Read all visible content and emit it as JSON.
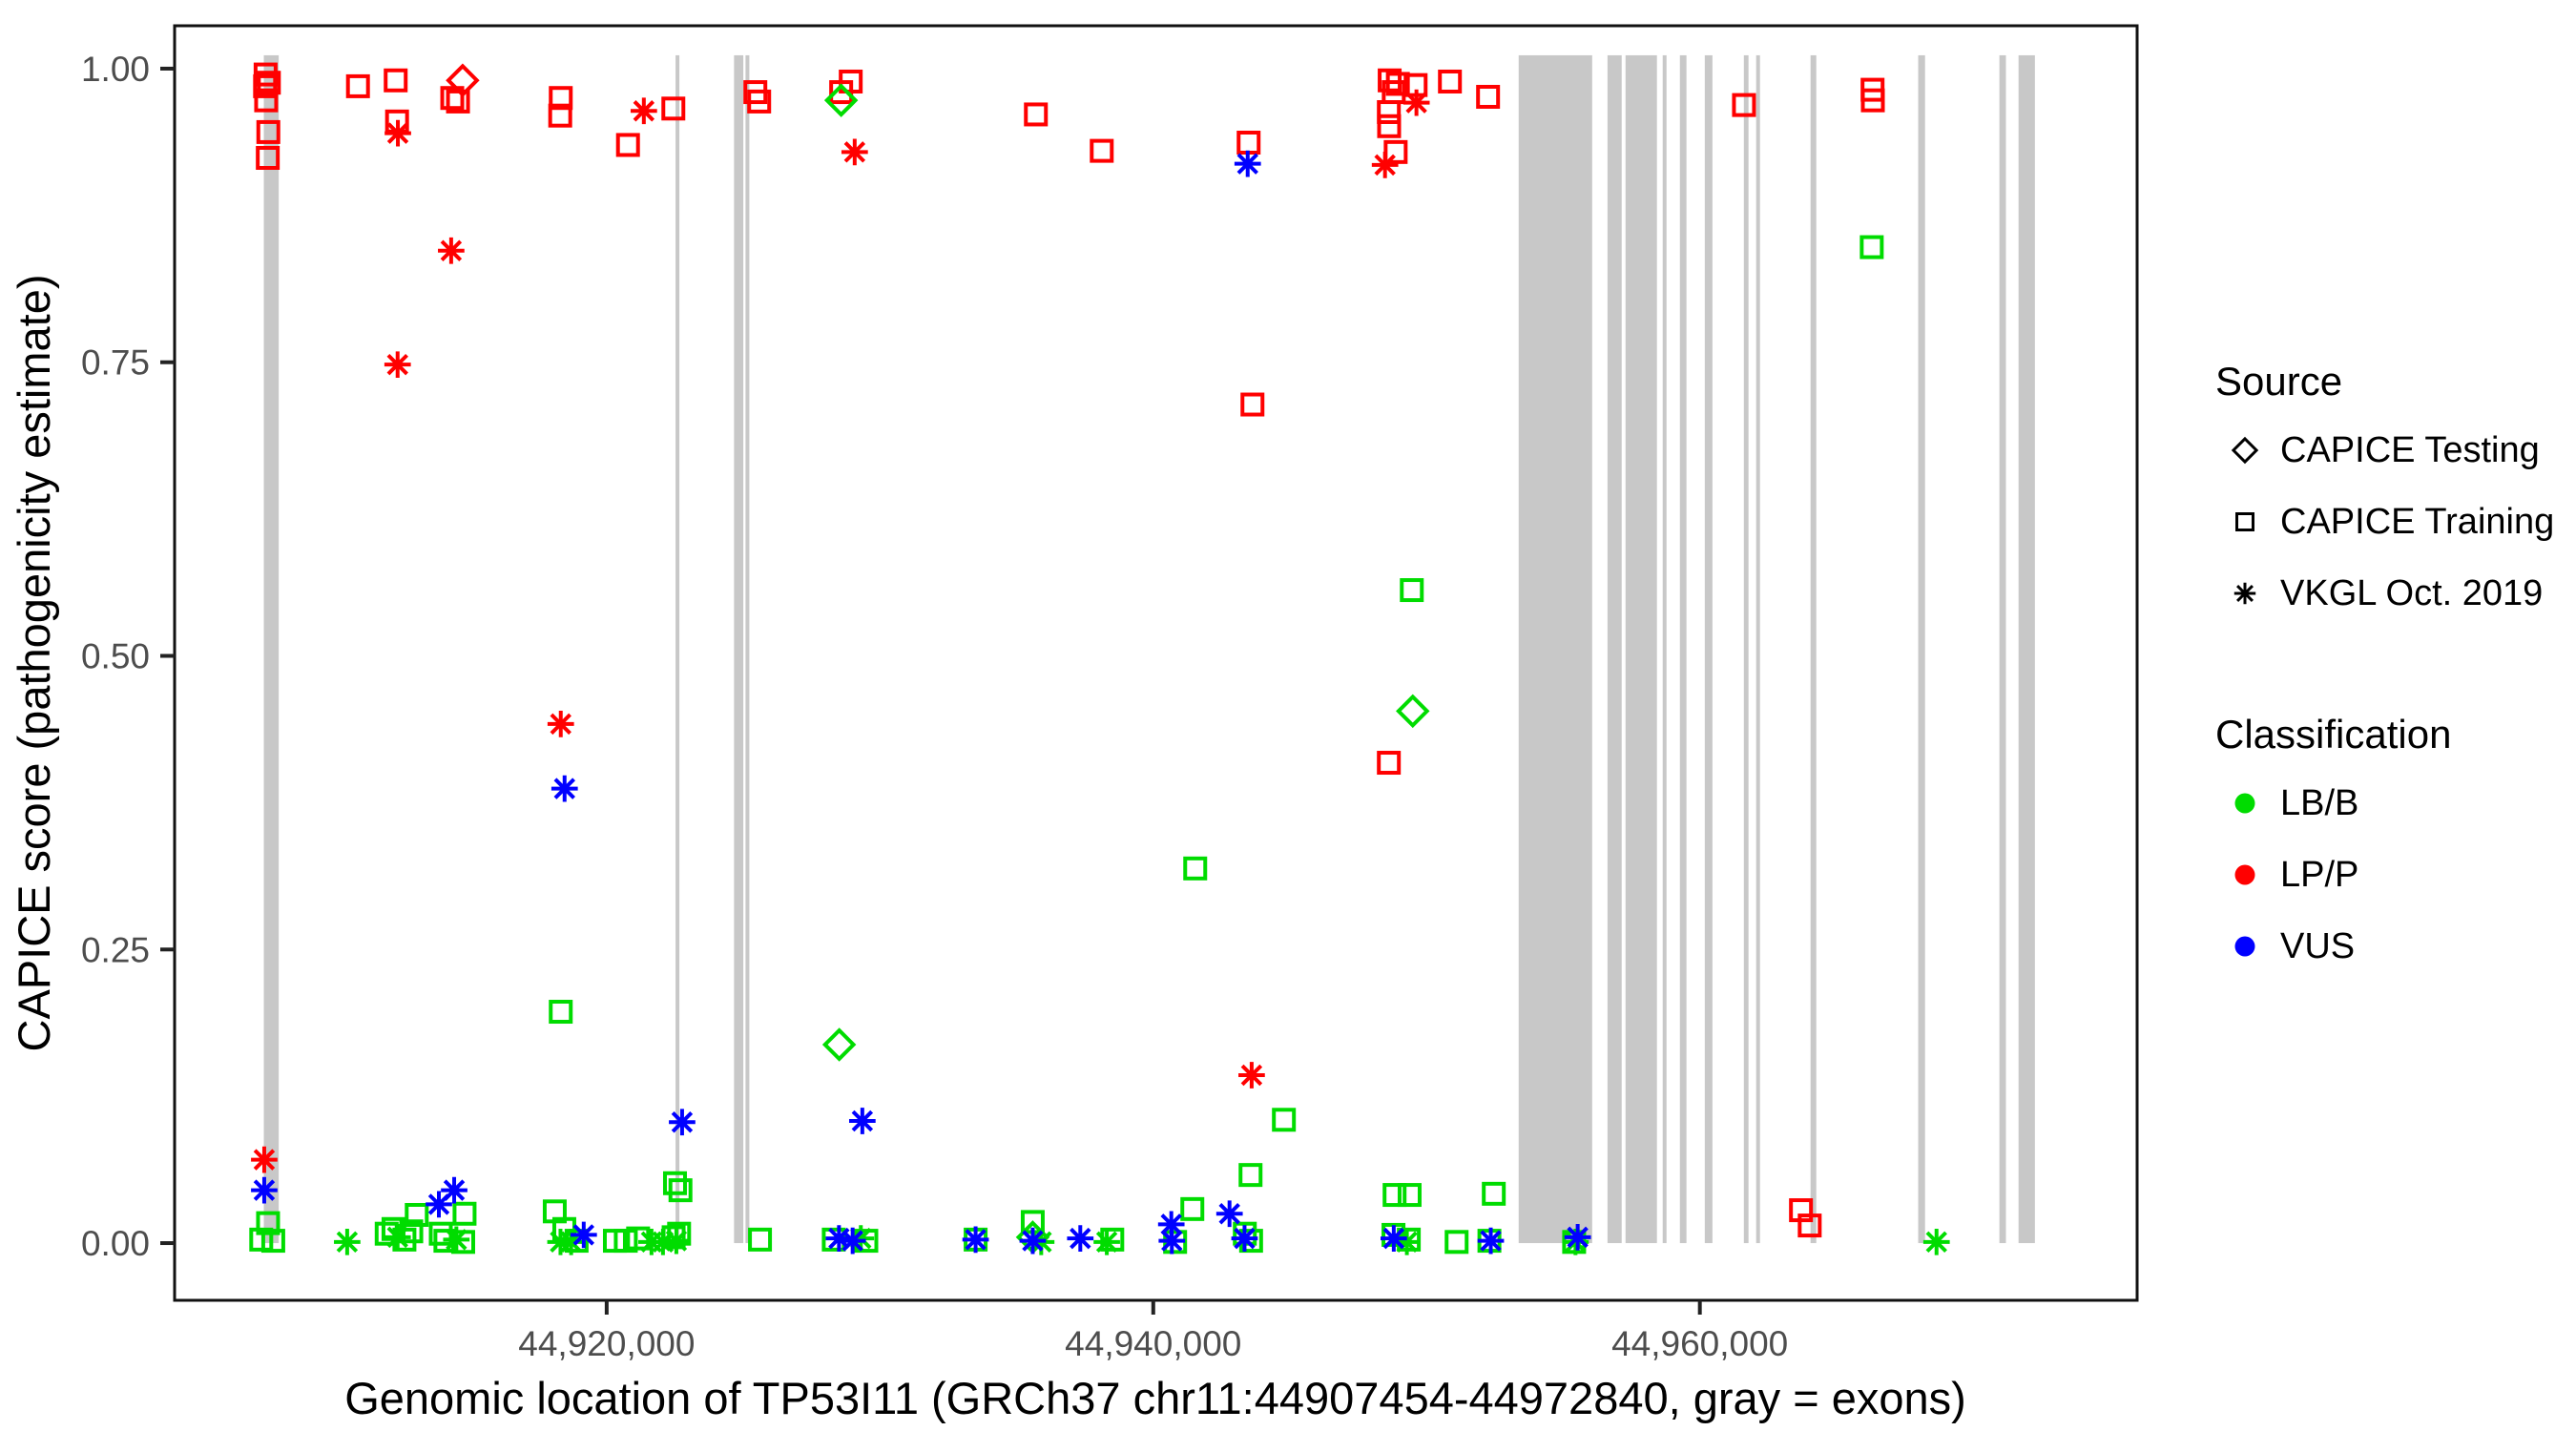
{
  "chart_data": {
    "type": "scatter",
    "title": "",
    "x_axis": {
      "label": "Genomic location of TP53I11 (GRCh37 chr11:44907454-44972840, gray = exons)",
      "range": [
        44904190,
        44976000
      ],
      "ticks": [
        {
          "value": 44920000,
          "label": "44,920,000"
        },
        {
          "value": 44940000,
          "label": "44,940,000"
        },
        {
          "value": 44960000,
          "label": "44,960,000"
        }
      ]
    },
    "y_axis": {
      "label": "CAPICE score (pathogenicity estimate)",
      "range": [
        -0.0487,
        1.0365
      ],
      "ticks": [
        {
          "value": 0.0,
          "label": "0.00"
        },
        {
          "value": 0.25,
          "label": "0.25"
        },
        {
          "value": 0.5,
          "label": "0.50"
        },
        {
          "value": 0.75,
          "label": "0.75"
        },
        {
          "value": 1.0,
          "label": "1.00"
        }
      ]
    },
    "grid": "off",
    "exons_note": "gray vertical bars are exons drawn from score 0 to 1",
    "exons": [
      [
        44907454,
        44908000
      ],
      [
        44922520,
        44922660
      ],
      [
        44924660,
        44925000
      ],
      [
        44925080,
        44925220
      ],
      [
        44953370,
        44956060
      ],
      [
        44956620,
        44957140
      ],
      [
        44957280,
        44958430
      ],
      [
        44958640,
        44958780
      ],
      [
        44959270,
        44959510
      ],
      [
        44960180,
        44960460
      ],
      [
        44961610,
        44961780
      ],
      [
        44962060,
        44962200
      ],
      [
        44964050,
        44964260
      ],
      [
        44967990,
        44968240
      ],
      [
        44970960,
        44971200
      ],
      [
        44971660,
        44972260
      ]
    ],
    "series": [
      {
        "name": "CAPICE Training / LP/P",
        "source": "CAPICE Training",
        "classification": "LP/P",
        "shape": "square",
        "color": "#FF0000",
        "points": [
          [
            44907520,
            0.995
          ],
          [
            44907640,
            0.988
          ],
          [
            44907500,
            0.985
          ],
          [
            44907540,
            0.973
          ],
          [
            44907620,
            0.946
          ],
          [
            44907600,
            0.924
          ],
          [
            44910900,
            0.985
          ],
          [
            44912280,
            0.99
          ],
          [
            44912330,
            0.955
          ],
          [
            44914350,
            0.975
          ],
          [
            44914560,
            0.972
          ],
          [
            44918320,
            0.975
          ],
          [
            44918300,
            0.96
          ],
          [
            44920780,
            0.935
          ],
          [
            44922440,
            0.966
          ],
          [
            44925440,
            0.98
          ],
          [
            44925580,
            0.972
          ],
          [
            44928930,
            0.989
          ],
          [
            44928580,
            0.98
          ],
          [
            44935705,
            0.961
          ],
          [
            44938115,
            0.93
          ],
          [
            44943490,
            0.937
          ],
          [
            44943630,
            0.714
          ],
          [
            44948650,
            0.99
          ],
          [
            44948950,
            0.987
          ],
          [
            44948800,
            0.98
          ],
          [
            44949600,
            0.986
          ],
          [
            44950855,
            0.989
          ],
          [
            44948620,
            0.963
          ],
          [
            44948630,
            0.951
          ],
          [
            44948870,
            0.929
          ],
          [
            44952250,
            0.976
          ],
          [
            44948620,
            0.409
          ],
          [
            44961615,
            0.969
          ],
          [
            44966320,
            0.982
          ],
          [
            44966330,
            0.973
          ],
          [
            44963700,
            0.028
          ],
          [
            44964020,
            0.015
          ]
        ]
      },
      {
        "name": "CAPICE Training / LB/B",
        "source": "CAPICE Training",
        "classification": "LB/B",
        "shape": "square",
        "color": "#00DC00",
        "points": [
          [
            44907610,
            0.017
          ],
          [
            44907360,
            0.003
          ],
          [
            44907800,
            0.002
          ],
          [
            44911950,
            0.008
          ],
          [
            44912200,
            0.012
          ],
          [
            44912600,
            0.003
          ],
          [
            44912850,
            0.01
          ],
          [
            44913050,
            0.024
          ],
          [
            44913930,
            0.008
          ],
          [
            44914100,
            0.002
          ],
          [
            44914800,
            0.025
          ],
          [
            44914750,
            0.001
          ],
          [
            44918100,
            0.027
          ],
          [
            44918450,
            0.012
          ],
          [
            44918900,
            0.002
          ],
          [
            44918320,
            0.197
          ],
          [
            44920300,
            0.002
          ],
          [
            44920700,
            0.002
          ],
          [
            44921150,
            0.004
          ],
          [
            44922500,
            0.051
          ],
          [
            44922700,
            0.045
          ],
          [
            44922450,
            0.005
          ],
          [
            44922650,
            0.008
          ],
          [
            44925610,
            0.003
          ],
          [
            44928310,
            0.003
          ],
          [
            44929500,
            0.002
          ],
          [
            44933500,
            0.003
          ],
          [
            44935590,
            0.018
          ],
          [
            44938500,
            0.003
          ],
          [
            44940800,
            0.001
          ],
          [
            44941430,
            0.029
          ],
          [
            44941535,
            0.319
          ],
          [
            44943350,
            0.008
          ],
          [
            44943560,
            0.058
          ],
          [
            44943580,
            0.002
          ],
          [
            44944780,
            0.105
          ],
          [
            44948830,
            0.041
          ],
          [
            44949380,
            0.041
          ],
          [
            44948790,
            0.007
          ],
          [
            44949350,
            0.003
          ],
          [
            44949460,
            0.556
          ],
          [
            44951100,
            0.001
          ],
          [
            44952300,
            0.002
          ],
          [
            44952460,
            0.042
          ],
          [
            44955400,
            0.001
          ],
          [
            44966290,
            0.848
          ]
        ]
      },
      {
        "name": "CAPICE Testing / LB/B",
        "source": "CAPICE Testing",
        "classification": "LB/B",
        "shape": "diamond",
        "color": "#00DC00",
        "points": [
          [
            44928580,
            0.973
          ],
          [
            44928510,
            0.169
          ],
          [
            44949495,
            0.453
          ],
          [
            44935590,
            0.005
          ]
        ]
      },
      {
        "name": "CAPICE Testing / LP/P",
        "source": "CAPICE Testing",
        "classification": "LP/P",
        "shape": "diamond",
        "color": "#FF0000",
        "points": [
          [
            44914730,
            0.99
          ]
        ]
      },
      {
        "name": "VKGL Oct. 2019 / LP/P",
        "source": "VKGL Oct. 2019",
        "classification": "LP/P",
        "shape": "asterisk",
        "color": "#FF0000",
        "points": [
          [
            44907470,
            0.071
          ],
          [
            44912360,
            0.945
          ],
          [
            44912350,
            0.748
          ],
          [
            44914310,
            0.845
          ],
          [
            44918320,
            0.442
          ],
          [
            44921360,
            0.964
          ],
          [
            44929075,
            0.929
          ],
          [
            44943600,
            0.143
          ],
          [
            44948480,
            0.918
          ],
          [
            44949630,
            0.971
          ]
        ]
      },
      {
        "name": "VKGL Oct. 2019 / LB/B",
        "source": "VKGL Oct. 2019",
        "classification": "LB/B",
        "shape": "asterisk",
        "color": "#00DC00",
        "points": [
          [
            44910505,
            0.001
          ],
          [
            44912350,
            0.005
          ],
          [
            44914500,
            0.003
          ],
          [
            44918310,
            0.001
          ],
          [
            44918700,
            0.001
          ],
          [
            44921640,
            0.001
          ],
          [
            44922060,
            0.001
          ],
          [
            44922550,
            0.002
          ],
          [
            44929300,
            0.004
          ],
          [
            44935900,
            0.001
          ],
          [
            44938300,
            0.001
          ],
          [
            44949280,
            0.001
          ],
          [
            44955450,
            0.001
          ],
          [
            44968660,
            0.001
          ]
        ]
      },
      {
        "name": "VKGL Oct. 2019 / VUS",
        "source": "VKGL Oct. 2019",
        "classification": "VUS",
        "shape": "asterisk",
        "color": "#0000FF",
        "points": [
          [
            44907470,
            0.045
          ],
          [
            44913860,
            0.033
          ],
          [
            44914420,
            0.045
          ],
          [
            44918460,
            0.387
          ],
          [
            44919160,
            0.007
          ],
          [
            44922760,
            0.103
          ],
          [
            44928500,
            0.004
          ],
          [
            44929000,
            0.002
          ],
          [
            44929355,
            0.104
          ],
          [
            44933500,
            0.003
          ],
          [
            44935590,
            0.002
          ],
          [
            44937330,
            0.004
          ],
          [
            44940660,
            0.016
          ],
          [
            44940680,
            0.002
          ],
          [
            44942790,
            0.025
          ],
          [
            44943340,
            0.004
          ],
          [
            44943455,
            0.919
          ],
          [
            44948800,
            0.004
          ],
          [
            44952350,
            0.002
          ],
          [
            44955530,
            0.005
          ]
        ]
      }
    ],
    "legend": {
      "source": {
        "title": "Source",
        "items": [
          {
            "label": "CAPICE Testing",
            "shape": "diamond"
          },
          {
            "label": "CAPICE Training",
            "shape": "square"
          },
          {
            "label": "VKGL Oct. 2019",
            "shape": "asterisk"
          }
        ]
      },
      "classification": {
        "title": "Classification",
        "items": [
          {
            "label": "LB/B",
            "color": "#00DC00"
          },
          {
            "label": "LP/P",
            "color": "#FF0000"
          },
          {
            "label": "VUS",
            "color": "#0000FF"
          }
        ]
      }
    },
    "colors": {
      "LB/B": "#00DC00",
      "LP/P": "#FF0000",
      "VUS": "#0000FF",
      "exon_gray": "#C8C8C8",
      "axis_text": "#4D4D4D",
      "panel_border": "#111111"
    }
  }
}
